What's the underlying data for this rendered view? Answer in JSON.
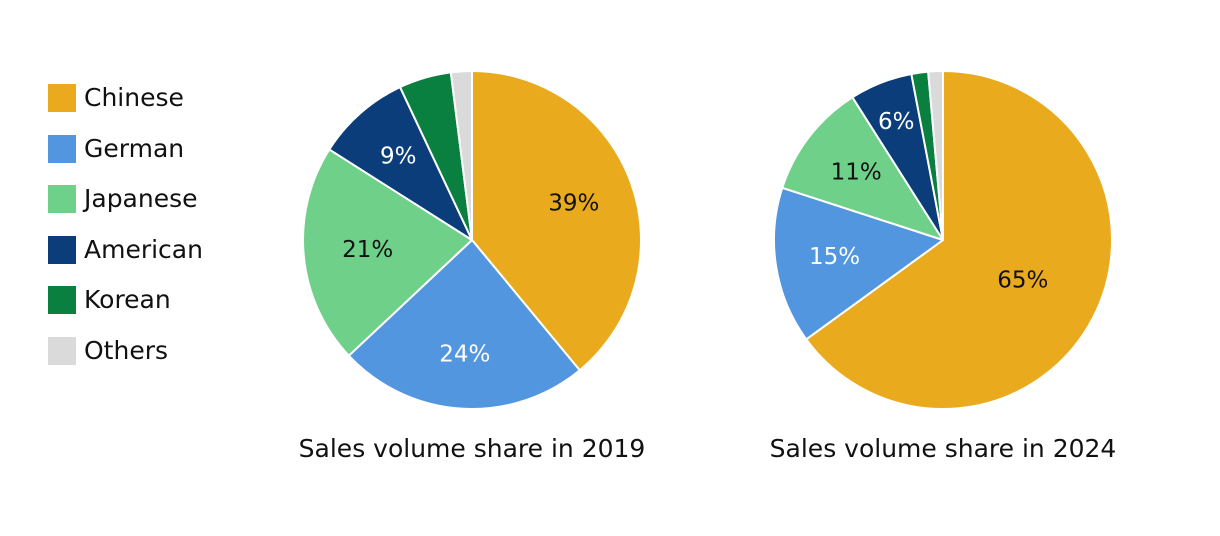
{
  "chart_data": [
    {
      "type": "pie",
      "title": "Sales volume share in 2019",
      "slices": [
        {
          "category": "Chinese",
          "value": 39,
          "label": "39%"
        },
        {
          "category": "German",
          "value": 24,
          "label": "24%"
        },
        {
          "category": "Japanese",
          "value": 21,
          "label": "21%"
        },
        {
          "category": "American",
          "value": 9,
          "label": "9%"
        },
        {
          "category": "Korean",
          "value": 5,
          "label": ""
        },
        {
          "category": "Others",
          "value": 2,
          "label": ""
        }
      ]
    },
    {
      "type": "pie",
      "title": "Sales volume share in 2024",
      "slices": [
        {
          "category": "Chinese",
          "value": 65,
          "label": "65%"
        },
        {
          "category": "German",
          "value": 15,
          "label": "15%"
        },
        {
          "category": "Japanese",
          "value": 11,
          "label": "11%"
        },
        {
          "category": "American",
          "value": 6,
          "label": "6%"
        },
        {
          "category": "Korean",
          "value": 1.6,
          "label": ""
        },
        {
          "category": "Others",
          "value": 1.4,
          "label": ""
        }
      ]
    }
  ],
  "legend": {
    "placement": "left",
    "items": [
      {
        "name": "Chinese",
        "color": "#EAAA1E"
      },
      {
        "name": "German",
        "color": "#5296E0"
      },
      {
        "name": "Japanese",
        "color": "#6FD08A"
      },
      {
        "name": "American",
        "color": "#0A3D7A"
      },
      {
        "name": "Korean",
        "color": "#0A8040"
      },
      {
        "name": "Others",
        "color": "#DADADA"
      }
    ]
  },
  "label_colors": {
    "Chinese": "#111111",
    "German": "#ffffff",
    "Japanese": "#111111",
    "American": "#ffffff",
    "Korean": "#ffffff",
    "Others": "#111111"
  }
}
